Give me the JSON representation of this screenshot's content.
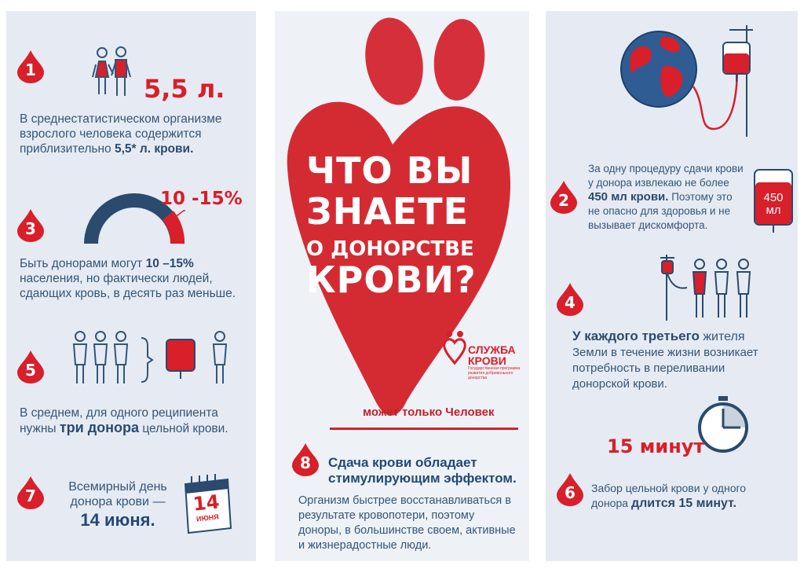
{
  "left": {
    "fact1": {
      "number": "1",
      "amount": "5,5 л.",
      "line1": "В среднестатистическом организме",
      "line2": "взрослого человека содержится",
      "line3_pre": "приблизительно ",
      "line3_bold": "5,5* л. крови."
    },
    "fact3": {
      "number": "3",
      "percent": "10 -15%",
      "line1_pre": "Быть донорами могут ",
      "line1_bold": "10 –15%",
      "line2": "населения, но фактически людей,",
      "line3": "сдающих кровь, в десять раз меньше."
    },
    "fact5": {
      "number": "5",
      "line1": "В среднем, для одного реципиента",
      "line2_pre": "нужны ",
      "line2_bold": "три донора",
      "line2_post": " цельной крови."
    },
    "fact7": {
      "number": "7",
      "line1": "Всемирный день",
      "line2": "донора крови —",
      "line3": "14 июня.",
      "calendar_day": "14",
      "calendar_month": "ИЮНЯ"
    }
  },
  "center": {
    "headline": {
      "line1": "ЧТО ВЫ",
      "line2": "ЗНАЕТЕ",
      "line3": "О ДОНОРСТВЕ",
      "line4": "КРОВИ?"
    },
    "logo": {
      "line1": "СЛУЖБА",
      "line2": "КРОВИ",
      "subtitle": "Государственная программа развития добровольного донорства"
    },
    "slogan": "может только Человек",
    "fact8": {
      "number": "8",
      "title1": "Сдача крови обладает",
      "title2": "стимулирующим эффектом.",
      "line1": "Организм быстрее восстанавливаться в",
      "line2": "результате кровопотери, поэтому",
      "line3": "доноры, в большинстве своем, активные",
      "line4": "и жизнерадостные люди."
    }
  },
  "right": {
    "fact2": {
      "number": "2",
      "bag_label": "450 мл",
      "line1": "За одну процедуру сдачи крови",
      "line2": "у донора извлекаю не более",
      "line3_bold": "450 мл крови.",
      "line3_post": " Поэтому это",
      "line4": "не опасно для здоровья и не",
      "line5": "вызывает дискомфорта."
    },
    "fact4": {
      "number": "4",
      "line1_bold": "У каждого третьего",
      "line1_post": " жителя",
      "line2": "Земли в течение жизни возникает",
      "line3": "потребность в переливании",
      "line4": "донорской крови."
    },
    "fact6": {
      "number": "6",
      "minutes": "15 минут",
      "line1": "Забор цельной крови у одного",
      "line2_pre": "донора ",
      "line2_bold": "длится 15 минут."
    }
  },
  "colors": {
    "accent_red": "#d81f2a",
    "text_blue": "#2a4a6e",
    "panel_bg": "#e6ebf3"
  }
}
